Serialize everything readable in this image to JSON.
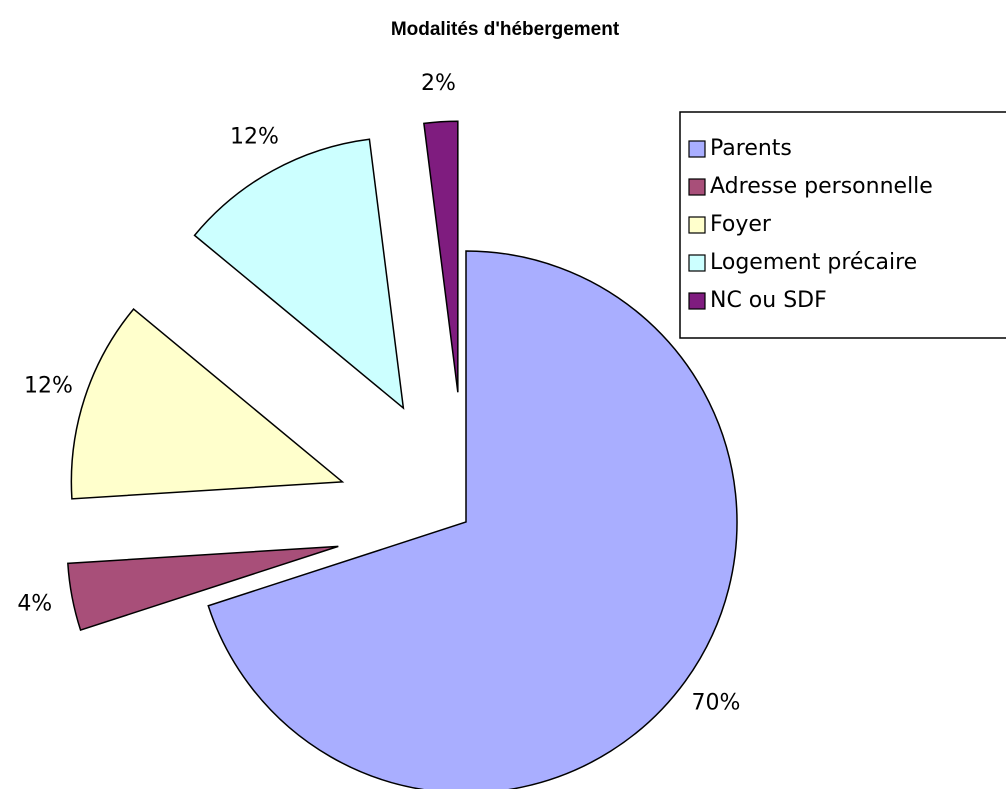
{
  "chart_data": {
    "type": "pie",
    "title": "Modalités d'hébergement",
    "categories": [
      "Parents",
      "Adresse personnelle",
      "Foyer",
      "Logement précaire",
      "NC ou SDF"
    ],
    "values": [
      70,
      4,
      12,
      12,
      2
    ],
    "value_labels": [
      "70%",
      "4%",
      "12%",
      "12%",
      "2%"
    ],
    "colors": [
      "#a9aeff",
      "#a84f79",
      "#ffffcc",
      "#ccffff",
      "#7f1c7f"
    ],
    "legend": "right"
  }
}
